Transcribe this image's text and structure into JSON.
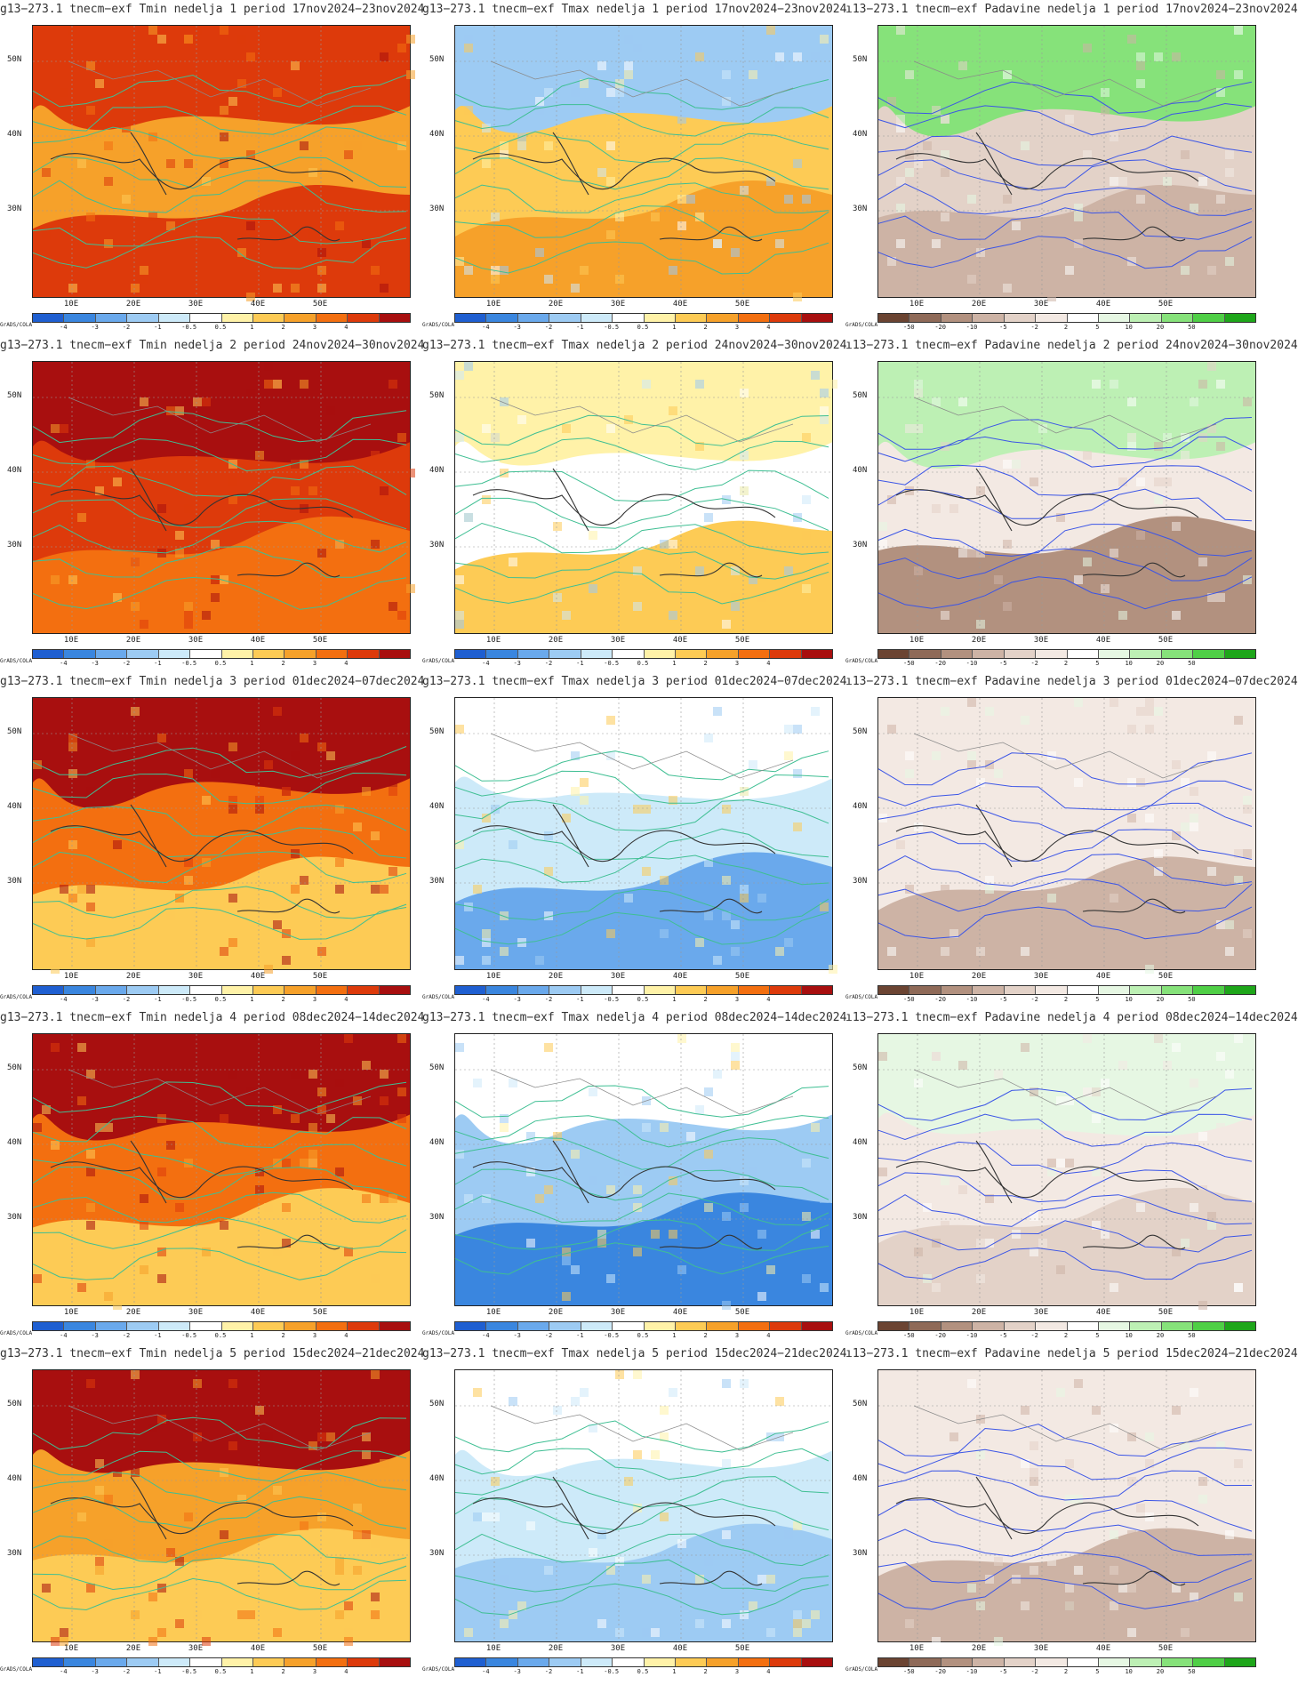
{
  "footer_text": "GrADS/COLA",
  "lat_labels": [
    "50N",
    "40N",
    "30N"
  ],
  "lon_labels": [
    "10E",
    "20E",
    "30E",
    "40E",
    "50E"
  ],
  "legends": {
    "temp": {
      "labels": [
        "-4",
        "-3",
        "-2",
        "-1",
        "-0.5",
        "0.5",
        "1",
        "2",
        "3",
        "4"
      ],
      "colors": [
        "#1f5fd1",
        "#3a86df",
        "#6aa9ec",
        "#9dcbf3",
        "#cdeaf9",
        "#ffffff",
        "#fff2a8",
        "#fdcb55",
        "#f6a12a",
        "#f36f10",
        "#dd3a0b",
        "#a80f0f"
      ]
    },
    "precip": {
      "labels": [
        "-50",
        "-20",
        "-10",
        "-5",
        "-2",
        "2",
        "5",
        "10",
        "20",
        "50"
      ],
      "colors": [
        "#6b4432",
        "#8f6a58",
        "#b2917f",
        "#cdb3a5",
        "#e3d2c8",
        "#f3e9e3",
        "#ffffff",
        "#e6f7e3",
        "#bdf0b4",
        "#86e27a",
        "#4fcf46",
        "#1ea61a"
      ]
    }
  },
  "panels": [
    {
      "title": "g13−273.1 tnecm−exf Tmin nedelja 1 period 17nov2024−23nov2024",
      "kind": "tmin",
      "week": 1
    },
    {
      "title": "g13−273.1 tnecm−exf Tmax nedelja 1 period 17nov2024−23nov2024",
      "kind": "tmax",
      "week": 1
    },
    {
      "title": "ı13−273.1 tnecm−exf Padavine nedelja 1 period 17nov2024−23nov2024",
      "kind": "precip",
      "week": 1
    },
    {
      "title": "g13−273.1 tnecm−exf Tmin nedelja 2 period 24nov2024−30nov2024",
      "kind": "tmin",
      "week": 2
    },
    {
      "title": "g13−273.1 tnecm−exf Tmax nedelja 2 period 24nov2024−30nov2024",
      "kind": "tmax",
      "week": 2
    },
    {
      "title": "ı13−273.1 tnecm−exf Padavine nedelja 2 period 24nov2024−30nov2024",
      "kind": "precip",
      "week": 2
    },
    {
      "title": "g13−273.1 tnecm−exf Tmin nedelja 3 period 01dec2024−07dec2024",
      "kind": "tmin",
      "week": 3
    },
    {
      "title": "g13−273.1 tnecm−exf Tmax nedelja 3 period 01dec2024−07dec2024",
      "kind": "tmax",
      "week": 3
    },
    {
      "title": "ı13−273.1 tnecm−exf Padavine nedelja 3 period 01dec2024−07dec2024",
      "kind": "precip",
      "week": 3
    },
    {
      "title": "g13−273.1 tnecm−exf Tmin nedelja 4 period 08dec2024−14dec2024",
      "kind": "tmin",
      "week": 4
    },
    {
      "title": "g13−273.1 tnecm−exf Tmax nedelja 4 period 08dec2024−14dec2024",
      "kind": "tmax",
      "week": 4
    },
    {
      "title": "ı13−273.1 tnecm−exf Padavine nedelja 4 period 08dec2024−14dec2024",
      "kind": "precip",
      "week": 4
    },
    {
      "title": "g13−273.1 tnecm−exf Tmin nedelja 5 period 15dec2024−21dec2024",
      "kind": "tmin",
      "week": 5
    },
    {
      "title": "g13−273.1 tnecm−exf Tmax nedelja 5 period 15dec2024−21dec2024",
      "kind": "tmax",
      "week": 5
    },
    {
      "title": "ı13−273.1 tnecm−exf Padavine nedelja 5 period 15dec2024−21dec2024",
      "kind": "precip",
      "week": 5
    }
  ]
}
